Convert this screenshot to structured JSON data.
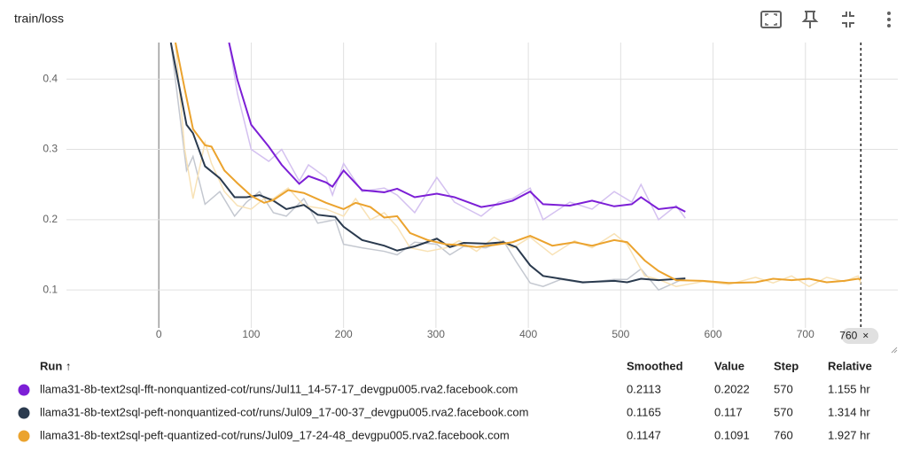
{
  "chart_data": {
    "type": "line",
    "title": "train/loss",
    "xlim": [
      -100,
      800
    ],
    "xticks": [
      0,
      100,
      200,
      300,
      400,
      500,
      600,
      700
    ],
    "ylim": [
      0.046,
      0.452
    ],
    "yticks": [
      0.1,
      0.2,
      0.3,
      0.4
    ],
    "grid": true,
    "cursor_step": 760,
    "cursor_close": "×",
    "table_headers": [
      "Run ↑",
      "Smoothed",
      "Value",
      "Step",
      "Relative"
    ],
    "series": [
      {
        "name": "llama31-8b-text2sql-fft-nonquantized-cot/runs/Jul11_14-57-17_devgpu005.rva2.facebook.com",
        "color": "#7c1fd6",
        "raw_color": "#d4c1f0",
        "relative": "1.155 hr",
        "x": [
          76,
          85,
          100,
          119,
          133,
          152,
          162,
          181,
          188,
          200,
          220,
          244,
          258,
          277,
          301,
          320,
          349,
          368,
          383,
          402,
          416,
          445,
          469,
          493,
          512,
          522,
          541,
          560,
          570
        ],
        "values": [
          0.452,
          0.399,
          0.335,
          0.304,
          0.278,
          0.251,
          0.262,
          0.253,
          0.247,
          0.27,
          0.242,
          0.239,
          0.244,
          0.232,
          0.237,
          0.232,
          0.218,
          0.222,
          0.227,
          0.24,
          0.222,
          0.22,
          0.227,
          0.219,
          0.222,
          0.232,
          0.215,
          0.218,
          0.2113
        ],
        "raw_values": [
          0.452,
          0.38,
          0.3,
          0.283,
          0.3,
          0.255,
          0.278,
          0.26,
          0.235,
          0.28,
          0.24,
          0.245,
          0.235,
          0.21,
          0.26,
          0.225,
          0.205,
          0.225,
          0.23,
          0.245,
          0.2,
          0.225,
          0.215,
          0.24,
          0.225,
          0.25,
          0.2,
          0.22,
          0.2022
        ]
      },
      {
        "name": "llama31-8b-text2sql-peft-nonquantized-cot/runs/Jul09_17-00-37_devgpu005.rva2.facebook.com",
        "color": "#2a3a4e",
        "raw_color": "#c4c8d0",
        "relative": "1.314 hr",
        "x": [
          13,
          30,
          37,
          50,
          66,
          82,
          95,
          109,
          124,
          138,
          157,
          172,
          191,
          200,
          220,
          244,
          258,
          277,
          301,
          315,
          330,
          354,
          373,
          387,
          402,
          416,
          435,
          459,
          493,
          507,
          522,
          541,
          570
        ],
        "values": [
          0.452,
          0.335,
          0.323,
          0.276,
          0.259,
          0.232,
          0.232,
          0.235,
          0.227,
          0.215,
          0.221,
          0.207,
          0.204,
          0.19,
          0.171,
          0.163,
          0.156,
          0.162,
          0.173,
          0.161,
          0.167,
          0.166,
          0.168,
          0.161,
          0.135,
          0.12,
          0.116,
          0.111,
          0.113,
          0.111,
          0.116,
          0.114,
          0.1165
        ],
        "raw_values": [
          0.452,
          0.27,
          0.29,
          0.222,
          0.24,
          0.205,
          0.225,
          0.24,
          0.21,
          0.205,
          0.23,
          0.195,
          0.2,
          0.165,
          0.16,
          0.155,
          0.15,
          0.168,
          0.165,
          0.15,
          0.162,
          0.16,
          0.17,
          0.14,
          0.11,
          0.105,
          0.115,
          0.11,
          0.115,
          0.115,
          0.13,
          0.1,
          0.117
        ]
      },
      {
        "name": "llama31-8b-text2sql-peft-quantized-cot/runs/Jul09_17-24-48_devgpu005.rva2.facebook.com",
        "color": "#eba32e",
        "raw_color": "#f8e2b6",
        "relative": "1.927 hr",
        "x": [
          18,
          28,
          37,
          50,
          57,
          71,
          85,
          100,
          114,
          124,
          140,
          157,
          181,
          200,
          213,
          229,
          244,
          258,
          272,
          291,
          311,
          325,
          344,
          363,
          383,
          402,
          426,
          450,
          469,
          493,
          507,
          526,
          541,
          560,
          589,
          617,
          646,
          665,
          685,
          704,
          723,
          742,
          757,
          760
        ],
        "values": [
          0.452,
          0.386,
          0.329,
          0.306,
          0.304,
          0.27,
          0.252,
          0.234,
          0.224,
          0.228,
          0.242,
          0.238,
          0.224,
          0.215,
          0.224,
          0.218,
          0.203,
          0.205,
          0.181,
          0.171,
          0.165,
          0.164,
          0.161,
          0.164,
          0.168,
          0.177,
          0.163,
          0.168,
          0.163,
          0.171,
          0.168,
          0.142,
          0.127,
          0.114,
          0.113,
          0.11,
          0.111,
          0.116,
          0.114,
          0.116,
          0.111,
          0.113,
          0.116,
          0.1147
        ],
        "raw_values": [
          0.452,
          0.3,
          0.23,
          0.31,
          0.28,
          0.24,
          0.22,
          0.215,
          0.23,
          0.23,
          0.245,
          0.22,
          0.215,
          0.205,
          0.23,
          0.2,
          0.21,
          0.19,
          0.16,
          0.155,
          0.16,
          0.17,
          0.155,
          0.175,
          0.16,
          0.175,
          0.15,
          0.17,
          0.16,
          0.18,
          0.165,
          0.12,
          0.115,
          0.105,
          0.112,
          0.108,
          0.118,
          0.11,
          0.12,
          0.105,
          0.118,
          0.112,
          0.12,
          0.1091
        ]
      }
    ]
  }
}
